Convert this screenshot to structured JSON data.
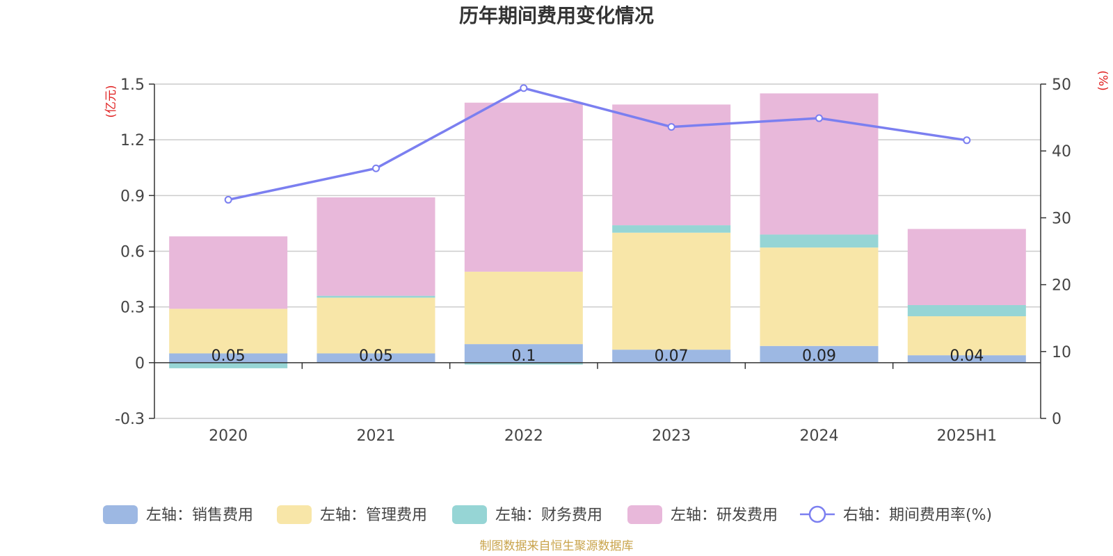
{
  "chart_data": {
    "type": "bar",
    "title": "历年期间费用变化情况",
    "left_unit": "(亿元)",
    "right_unit": "(%)",
    "categories": [
      "2020",
      "2021",
      "2022",
      "2023",
      "2024",
      "2025H1"
    ],
    "left_axis": {
      "ylim": [
        -0.3,
        1.5
      ],
      "ticks": [
        "-0.3",
        "0",
        "0.3",
        "0.6",
        "0.9",
        "1.2",
        "1.5"
      ]
    },
    "right_axis": {
      "ylim": [
        0,
        50
      ],
      "ticks": [
        "0",
        "10",
        "20",
        "30",
        "40",
        "50"
      ]
    },
    "grid": true,
    "legend_position": "bottom",
    "series": [
      {
        "name": "左轴：销售费用",
        "type": "bar",
        "stack": true,
        "color": "#9db8e3",
        "values": [
          0.05,
          0.05,
          0.1,
          0.07,
          0.09,
          0.04
        ],
        "labels": [
          "0.05",
          "0.05",
          "0.1",
          "0.07",
          "0.09",
          "0.04"
        ]
      },
      {
        "name": "左轴：管理费用",
        "type": "bar",
        "stack": true,
        "color": "#f8e6a8",
        "values": [
          0.24,
          0.3,
          0.39,
          0.63,
          0.53,
          0.21
        ]
      },
      {
        "name": "左轴：财务费用",
        "type": "bar",
        "stack": true,
        "color": "#96d5d5",
        "values": [
          -0.03,
          0.01,
          -0.01,
          0.04,
          0.07,
          0.06
        ]
      },
      {
        "name": "左轴：研发费用",
        "type": "bar",
        "stack": true,
        "color": "#e8b8da",
        "values": [
          0.39,
          0.53,
          0.91,
          0.65,
          0.76,
          0.41
        ]
      },
      {
        "name": "右轴：期间费用率(%)",
        "type": "line",
        "axis": "right",
        "color": "#7b7ff0",
        "values": [
          32.7,
          37.4,
          49.4,
          43.6,
          44.9,
          41.6
        ]
      }
    ]
  },
  "source": "制图数据来自恒生聚源数据库"
}
